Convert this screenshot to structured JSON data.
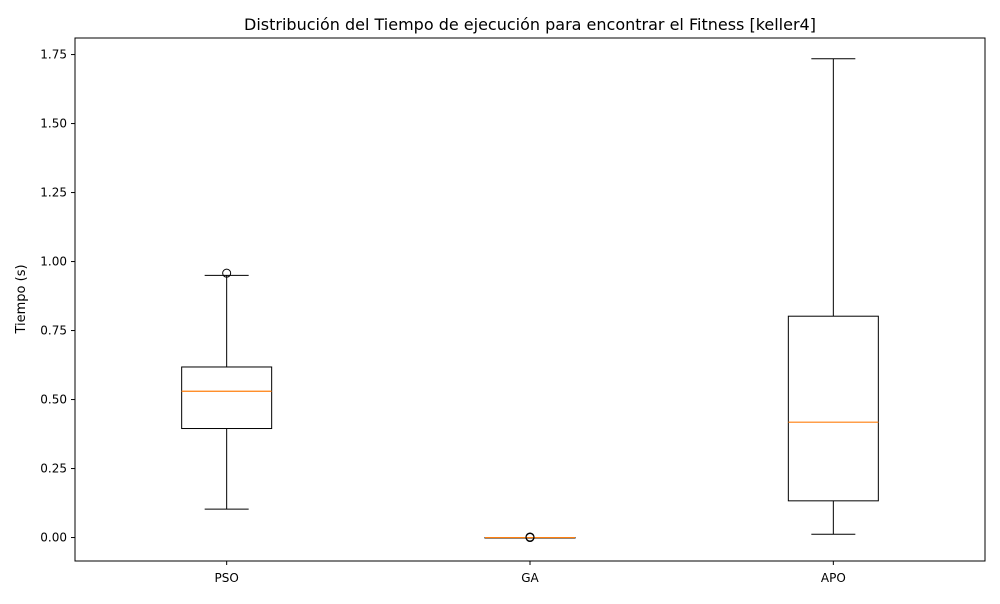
{
  "chart_data": {
    "type": "box",
    "title": "Distribución del Tiempo de ejecución para encontrar el Fitness [keller4]",
    "xlabel": "",
    "ylabel": "Tiempo (s)",
    "categories": [
      "PSO",
      "GA",
      "APO"
    ],
    "ylim": [
      -0.085,
      1.81
    ],
    "yticks": [
      0.0,
      0.25,
      0.5,
      0.75,
      1.0,
      1.25,
      1.5,
      1.75
    ],
    "ytick_labels": [
      "0.00",
      "0.25",
      "0.50",
      "0.75",
      "1.00",
      "1.25",
      "1.50",
      "1.75"
    ],
    "grid": false,
    "boxes": [
      {
        "name": "PSO",
        "whisker_low": 0.103,
        "q1": 0.395,
        "median": 0.53,
        "q3": 0.618,
        "whisker_high": 0.95,
        "outliers": [
          0.958
        ]
      },
      {
        "name": "GA",
        "whisker_low": 0.0,
        "q1": 0.0,
        "median": 0.0,
        "q3": 0.0,
        "whisker_high": 0.0,
        "outliers": [
          0.0,
          0.001,
          0.002
        ]
      },
      {
        "name": "APO",
        "whisker_low": 0.012,
        "q1": 0.133,
        "median": 0.418,
        "q3": 0.802,
        "whisker_high": 1.735,
        "outliers": []
      }
    ],
    "colors": {
      "box": "#000000",
      "median": "#ff7f0e",
      "background": "#ffffff"
    }
  }
}
